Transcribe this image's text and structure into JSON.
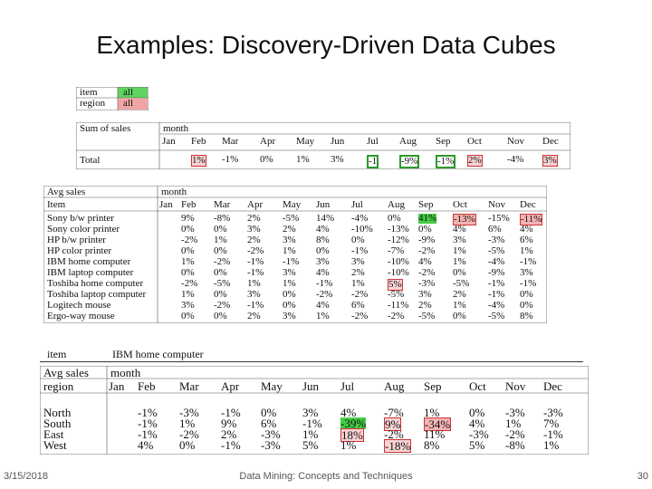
{
  "slide": {
    "title": "Examples: Discovery-Driven Data Cubes",
    "date": "3/15/2018",
    "course": "Data Mining: Concepts and Techniques",
    "page": "30"
  },
  "cube1": {
    "item_label": "item",
    "item_value": "all",
    "region_label": "region",
    "region_value": "all"
  },
  "cube2": {
    "row_label": "Sum of sales",
    "col_label": "month",
    "months": [
      "Jan",
      "Feb",
      "Mar",
      "Apr",
      "May",
      "Jun",
      "Jul",
      "Aug",
      "Sep",
      "Oct",
      "Nov",
      "Dec"
    ],
    "total_label": "Total",
    "total_values": [
      "",
      "1%",
      "-1%",
      "0%",
      "1%",
      "3%",
      "-1",
      "-9%",
      "-1%",
      "2%",
      "-4%",
      "3%"
    ]
  },
  "cube3": {
    "measure_label": "Avg sales",
    "col_label": "month",
    "row_label": "Item",
    "months": [
      "Jan",
      "Feb",
      "Mar",
      "Apr",
      "May",
      "Jun",
      "Jul",
      "Aug",
      "Sep",
      "Oct",
      "Nov",
      "Dec"
    ],
    "rows": [
      {
        "item": "Sony b/w printer",
        "values": [
          "",
          "9%",
          "-8%",
          "2%",
          "-5%",
          "14%",
          "-4%",
          "0%",
          "41%",
          "-13%",
          "-15%",
          "-11%"
        ]
      },
      {
        "item": "Sony color printer",
        "values": [
          "",
          "0%",
          "0%",
          "3%",
          "2%",
          "4%",
          "-10%",
          "-13%",
          "0%",
          "4%",
          "6%",
          "4%"
        ]
      },
      {
        "item": "HP b/w printer",
        "values": [
          "",
          "-2%",
          "1%",
          "2%",
          "3%",
          "8%",
          "0%",
          "-12%",
          "-9%",
          "3%",
          "-3%",
          "6%"
        ]
      },
      {
        "item": "HP color printer",
        "values": [
          "",
          "0%",
          "0%",
          "-2%",
          "1%",
          "0%",
          "-1%",
          "-7%",
          "-2%",
          "1%",
          "-5%",
          "1%"
        ]
      },
      {
        "item": "IBM home computer",
        "values": [
          "",
          "1%",
          "-2%",
          "-1%",
          "-1%",
          "3%",
          "3%",
          "-10%",
          "4%",
          "1%",
          "-4%",
          "-1%"
        ]
      },
      {
        "item": "IBM laptop computer",
        "values": [
          "",
          "0%",
          "0%",
          "-1%",
          "3%",
          "4%",
          "2%",
          "-10%",
          "-2%",
          "0%",
          "-9%",
          "3%"
        ]
      },
      {
        "item": "Toshiba home computer",
        "values": [
          "",
          "-2%",
          "-5%",
          "1%",
          "1%",
          "-1%",
          "1%",
          "5%",
          "-3%",
          "-5%",
          "-1%",
          "-1%"
        ]
      },
      {
        "item": "Toshiba laptop computer",
        "values": [
          "",
          "1%",
          "0%",
          "3%",
          "0%",
          "-2%",
          "-2%",
          "-5%",
          "3%",
          "2%",
          "-1%",
          "0%"
        ]
      },
      {
        "item": "Logitech mouse",
        "values": [
          "",
          "3%",
          "-2%",
          "-1%",
          "0%",
          "4%",
          "6%",
          "-11%",
          "2%",
          "1%",
          "-4%",
          "0%"
        ]
      },
      {
        "item": "Ergo-way mouse",
        "values": [
          "",
          "0%",
          "0%",
          "2%",
          "3%",
          "1%",
          "-2%",
          "-2%",
          "-5%",
          "0%",
          "-5%",
          "8%"
        ]
      }
    ]
  },
  "cube4": {
    "item_label": "item",
    "item_value": "IBM home computer",
    "measure_label": "Avg sales",
    "col_label": "month",
    "row_label": "region",
    "months": [
      "Jan",
      "Feb",
      "Mar",
      "Apr",
      "May",
      "Jun",
      "Jul",
      "Aug",
      "Sep",
      "Oct",
      "Nov",
      "Dec"
    ],
    "rows": [
      {
        "region": "North",
        "values": [
          "",
          "-1%",
          "-3%",
          "-1%",
          "0%",
          "3%",
          "4%",
          "-7%",
          "1%",
          "0%",
          "-3%",
          "-3%"
        ]
      },
      {
        "region": "South",
        "values": [
          "",
          "-1%",
          "1%",
          "9%",
          "6%",
          "-1%",
          "-39%",
          "9%",
          "-34%",
          "4%",
          "1%",
          "7%"
        ]
      },
      {
        "region": "East",
        "values": [
          "",
          "-1%",
          "-2%",
          "2%",
          "-3%",
          "1%",
          "18%",
          "-2%",
          "11%",
          "-3%",
          "-2%",
          "-1%"
        ]
      },
      {
        "region": "West",
        "values": [
          "",
          "4%",
          "0%",
          "-1%",
          "-3%",
          "5%",
          "1%",
          "-18%",
          "8%",
          "5%",
          "-8%",
          "1%"
        ]
      }
    ]
  }
}
